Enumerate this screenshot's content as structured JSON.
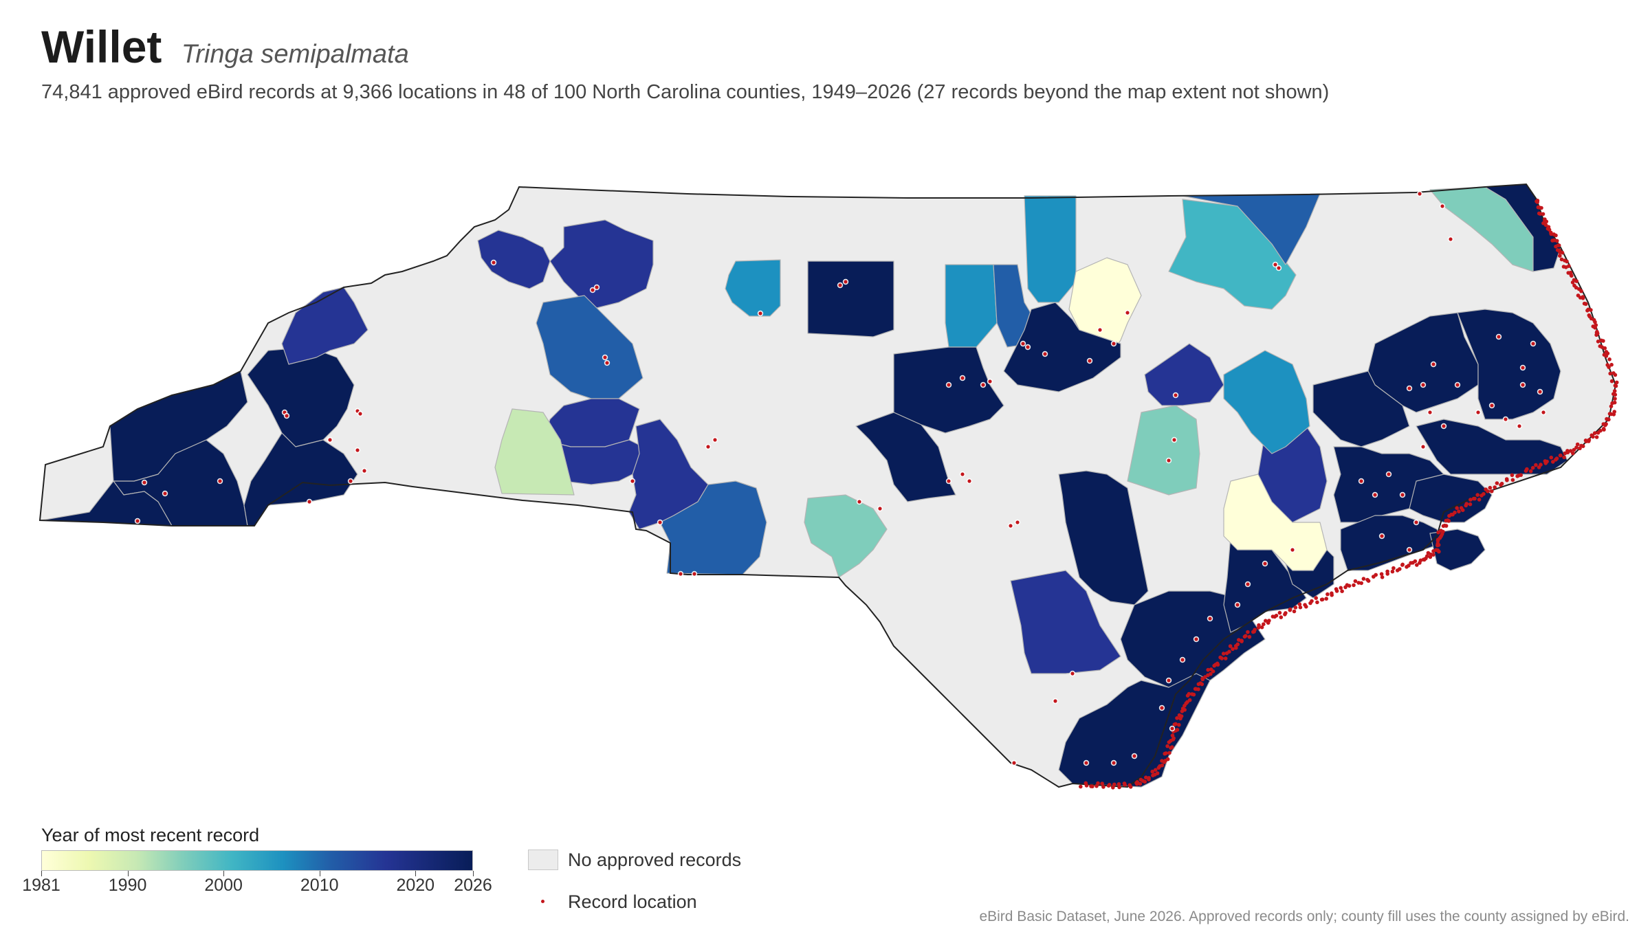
{
  "header": {
    "common_name": "Willet",
    "scientific_name": "Tringa semipalmata",
    "subtitle": "74,841 approved eBird records at 9,366 locations in 48 of 100 North Carolina counties, 1949–2026 (27 records beyond the map extent not shown)"
  },
  "legend": {
    "title": "Year of most recent record",
    "ticks": [
      "1981",
      "1990",
      "2000",
      "2010",
      "2020",
      "2026"
    ],
    "range": [
      1981,
      2026
    ],
    "no_records_label": "No approved records",
    "record_location_label": "Record location"
  },
  "caption": "eBird Basic Dataset, June 2026. Approved records only; county fill uses the county assigned by eBird.",
  "colors": {
    "no_records": "#ececec",
    "record_dot": "#c4161c",
    "state_outline": "#222222",
    "county_border": "#b5b5b5",
    "scale": [
      "#ffffd9",
      "#edf8b1",
      "#c7e9b4",
      "#7fcdbb",
      "#41b6c4",
      "#1d91c0",
      "#225ea8",
      "#253494",
      "#081d58"
    ]
  }
}
